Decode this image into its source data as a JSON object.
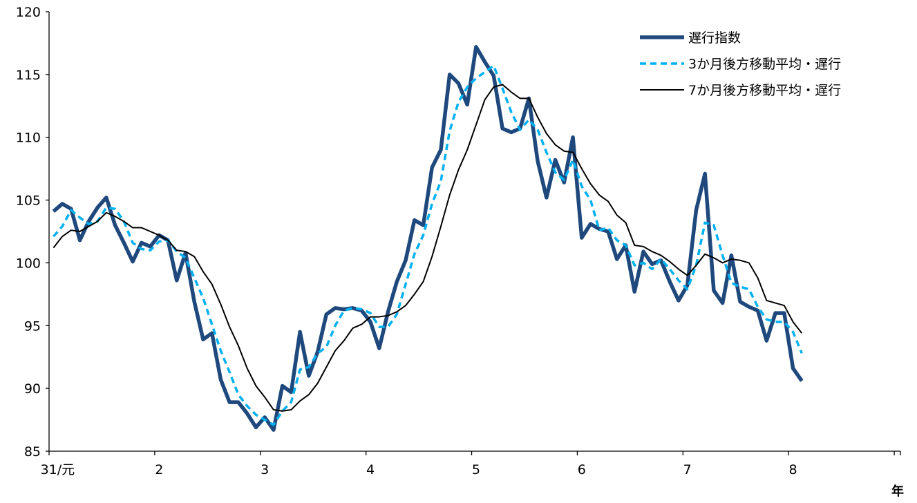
{
  "chart_data": {
    "type": "line",
    "title": "",
    "xlabel": "年",
    "ylabel": "",
    "ylim": [
      85,
      120
    ],
    "yticks": [
      85,
      90,
      95,
      100,
      105,
      110,
      115,
      120
    ],
    "xticks": [
      {
        "label": "31/元",
        "x": 0
      },
      {
        "label": "2",
        "x": 12
      },
      {
        "label": "3",
        "x": 24
      },
      {
        "label": "4",
        "x": 36
      },
      {
        "label": "5",
        "x": 48
      },
      {
        "label": "6",
        "x": 60
      },
      {
        "label": "7",
        "x": 72
      },
      {
        "label": "8",
        "x": 84
      }
    ],
    "xlim": [
      -0.5,
      96.2
    ],
    "grid": false,
    "legend_position": "top-right",
    "series": [
      {
        "name": "遅行指数",
        "color": "#1f497d",
        "style": "solid-thick",
        "values": [
          104.1,
          104.7,
          104.3,
          101.8,
          103.3,
          104.4,
          105.2,
          103.0,
          101.6,
          100.1,
          101.6,
          101.3,
          102.2,
          101.8,
          98.6,
          100.8,
          96.9,
          93.9,
          94.4,
          90.7,
          88.9,
          88.9,
          88.0,
          86.9,
          87.7,
          86.7,
          90.2,
          89.7,
          94.5,
          91.0,
          92.9,
          95.9,
          96.4,
          96.3,
          96.4,
          96.2,
          95.3,
          93.2,
          96.1,
          98.5,
          100.2,
          103.4,
          103.0,
          107.6,
          109.0,
          115.0,
          114.3,
          112.6,
          117.2,
          116.0,
          114.9,
          110.7,
          110.4,
          110.7,
          113.1,
          108.1,
          105.2,
          108.2,
          106.4,
          110.0,
          102.0,
          103.1,
          102.7,
          102.5,
          100.3,
          101.4,
          97.7,
          100.9,
          99.9,
          100.2,
          98.5,
          97.0,
          98.2,
          104.2,
          107.1,
          97.8,
          96.8,
          100.6,
          96.9,
          96.5,
          96.2,
          93.8,
          96.0,
          96.0,
          91.6,
          90.6
        ]
      },
      {
        "name": "3か月後方移動平均・遅行",
        "color": "#00b0f0",
        "style": "dashed",
        "values": [
          102.1,
          102.9,
          104.2,
          103.6,
          103.1,
          103.3,
          104.4,
          104.3,
          103.3,
          101.6,
          101.1,
          101.0,
          101.7,
          101.8,
          100.9,
          100.4,
          98.8,
          97.2,
          95.1,
          93.0,
          91.3,
          89.5,
          88.6,
          87.9,
          87.5,
          87.1,
          88.2,
          88.9,
          91.5,
          91.7,
          92.8,
          93.3,
          95.0,
          96.2,
          96.4,
          96.3,
          96.0,
          94.9,
          94.9,
          95.9,
          98.3,
          100.7,
          102.2,
          104.7,
          106.5,
          110.5,
          112.8,
          114.0,
          114.7,
          115.2,
          115.7,
          113.9,
          112.0,
          110.6,
          111.4,
          110.6,
          108.8,
          107.2,
          106.6,
          108.2,
          106.1,
          105.0,
          102.6,
          102.8,
          101.8,
          101.4,
          99.8,
          100.0,
          99.5,
          100.3,
          99.5,
          98.6,
          97.9,
          99.8,
          103.2,
          103.0,
          100.6,
          98.4,
          98.1,
          97.9,
          96.5,
          95.5,
          95.3,
          95.3,
          94.5,
          92.8
        ]
      },
      {
        "name": "7か月後方移動平均・遅行",
        "color": "#000000",
        "style": "solid-thin",
        "values": [
          101.2,
          102.1,
          102.6,
          102.5,
          102.9,
          103.3,
          104.0,
          103.7,
          103.3,
          102.8,
          102.8,
          102.5,
          102.2,
          101.8,
          101.0,
          100.9,
          100.5,
          99.3,
          98.3,
          96.7,
          94.9,
          93.4,
          91.6,
          90.2,
          89.3,
          88.3,
          88.2,
          88.3,
          89.0,
          89.5,
          90.4,
          91.7,
          93.0,
          93.8,
          94.8,
          95.1,
          95.7,
          95.7,
          95.8,
          96.1,
          96.6,
          97.5,
          98.5,
          100.5,
          102.9,
          105.4,
          107.4,
          109.0,
          111.0,
          113.0,
          114.0,
          114.2,
          113.6,
          113.1,
          113.1,
          111.6,
          110.3,
          109.4,
          108.9,
          108.8,
          107.5,
          106.3,
          105.4,
          104.9,
          103.8,
          103.2,
          101.4,
          101.3,
          100.9,
          100.6,
          100.1,
          99.5,
          99.0,
          99.8,
          100.7,
          100.4,
          100.0,
          100.3,
          100.2,
          100.0,
          98.8,
          97.0,
          96.8,
          96.6,
          95.3,
          94.4
        ]
      }
    ]
  }
}
